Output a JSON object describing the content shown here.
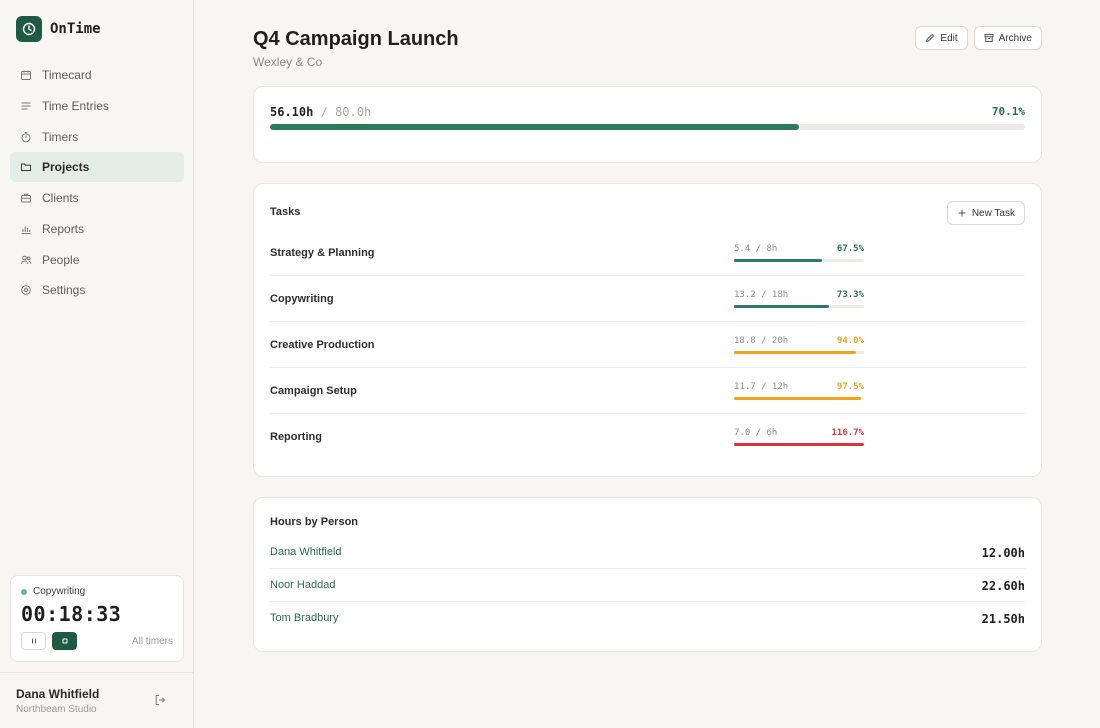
{
  "app": {
    "name": "OnTime"
  },
  "sidebar": {
    "items": [
      {
        "label": "Timecard",
        "icon": "calendar-icon",
        "active": false
      },
      {
        "label": "Time Entries",
        "icon": "list-icon",
        "active": false
      },
      {
        "label": "Timers",
        "icon": "stopwatch-icon",
        "active": false
      },
      {
        "label": "Projects",
        "icon": "folder-icon",
        "active": true
      },
      {
        "label": "Clients",
        "icon": "briefcase-icon",
        "active": false
      },
      {
        "label": "Reports",
        "icon": "bar-chart-icon",
        "active": false
      },
      {
        "label": "People",
        "icon": "users-icon",
        "active": false
      },
      {
        "label": "Settings",
        "icon": "gear-icon",
        "active": false
      }
    ],
    "timer": {
      "task": "Copywriting",
      "clock": "00:18:33",
      "all_timers": "All timers"
    },
    "user": {
      "name": "Dana Whitfield",
      "org": "Northbeam Studio"
    }
  },
  "project": {
    "title": "Q4 Campaign Launch",
    "client": "Wexley & Co",
    "edit_label": "Edit",
    "archive_label": "Archive",
    "logged": "56.10h",
    "separator": "/",
    "budget": "80.0h",
    "percent": "70.1%",
    "progress": 0.701
  },
  "tasks": {
    "title": "Tasks",
    "new_task_label": "New Task",
    "items": [
      {
        "name": "Strategy & Planning",
        "hours": "5.4 / 8h",
        "pct": "67.5%",
        "fraction": 0.675,
        "status": "ok"
      },
      {
        "name": "Copywriting",
        "hours": "13.2 / 18h",
        "pct": "73.3%",
        "fraction": 0.733,
        "status": "ok"
      },
      {
        "name": "Creative Production",
        "hours": "18.8 / 20h",
        "pct": "94.0%",
        "fraction": 0.94,
        "status": "warn"
      },
      {
        "name": "Campaign Setup",
        "hours": "11.7 / 12h",
        "pct": "97.5%",
        "fraction": 0.975,
        "status": "warn"
      },
      {
        "name": "Reporting",
        "hours": "7.0 / 6h",
        "pct": "116.7%",
        "fraction": 1.0,
        "status": "over"
      }
    ]
  },
  "people": {
    "title": "Hours by Person",
    "items": [
      {
        "name": "Dana Whitfield",
        "hours": "12.00h"
      },
      {
        "name": "Noor Haddad",
        "hours": "22.60h"
      },
      {
        "name": "Tom Bradbury",
        "hours": "21.50h"
      }
    ]
  },
  "colors": {
    "accent": "#1f5a45",
    "ok": "#2e7a5e",
    "warn": "#f0a21a",
    "over": "#d8353a"
  }
}
